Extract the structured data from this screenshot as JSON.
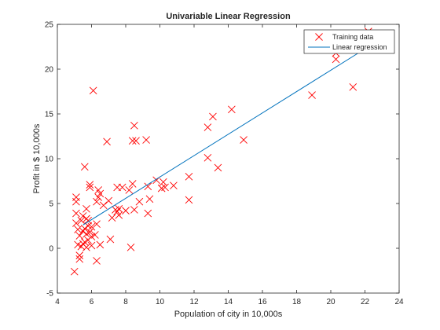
{
  "chart_data": {
    "type": "scatter",
    "title": "Univariable Linear Regression",
    "xlabel": "Population of city in 10,000s",
    "ylabel": "Profit in $ 10,000s",
    "xlim": [
      4,
      24
    ],
    "ylim": [
      -5,
      25
    ],
    "xticks": [
      "4",
      "6",
      "8",
      "10",
      "12",
      "14",
      "16",
      "18",
      "20",
      "22",
      "24"
    ],
    "yticks": [
      "-5",
      "0",
      "5",
      "10",
      "15",
      "20",
      "25"
    ],
    "grid": false,
    "legend_position": "top-right",
    "series": [
      {
        "name": "Training data",
        "kind": "marker-x",
        "color": "#ff0000",
        "points": [
          [
            5.0,
            -2.6
          ],
          [
            5.1,
            5.7
          ],
          [
            5.1,
            5.2
          ],
          [
            5.1,
            3.9
          ],
          [
            5.1,
            2.8
          ],
          [
            5.2,
            0.4
          ],
          [
            5.2,
            2.1
          ],
          [
            5.3,
            -0.8
          ],
          [
            5.3,
            -1.2
          ],
          [
            5.3,
            1.4
          ],
          [
            5.4,
            3.1
          ],
          [
            5.4,
            0.2
          ],
          [
            5.5,
            1.9
          ],
          [
            5.5,
            3.6
          ],
          [
            5.5,
            0.5
          ],
          [
            5.6,
            9.1
          ],
          [
            5.6,
            2.2
          ],
          [
            5.6,
            0.7
          ],
          [
            5.7,
            4.4
          ],
          [
            5.7,
            3.3
          ],
          [
            5.7,
            1.6
          ],
          [
            5.7,
            0.1
          ],
          [
            5.8,
            2.5
          ],
          [
            5.8,
            3.1
          ],
          [
            5.8,
            0.9
          ],
          [
            5.9,
            1.8
          ],
          [
            5.9,
            7.1
          ],
          [
            5.9,
            6.8
          ],
          [
            6.0,
            0.3
          ],
          [
            6.0,
            2.4
          ],
          [
            6.0,
            1.3
          ],
          [
            6.1,
            17.6
          ],
          [
            6.2,
            1.5
          ],
          [
            6.3,
            5.2
          ],
          [
            6.3,
            2.7
          ],
          [
            6.3,
            -1.4
          ],
          [
            6.4,
            6.5
          ],
          [
            6.4,
            5.7
          ],
          [
            6.5,
            0.4
          ],
          [
            6.5,
            6.1
          ],
          [
            6.7,
            4.8
          ],
          [
            6.9,
            11.9
          ],
          [
            7.0,
            5.3
          ],
          [
            7.1,
            1.0
          ],
          [
            7.2,
            3.4
          ],
          [
            7.4,
            4.3
          ],
          [
            7.5,
            4.1
          ],
          [
            7.5,
            6.8
          ],
          [
            7.6,
            3.7
          ],
          [
            7.6,
            4.4
          ],
          [
            7.8,
            6.8
          ],
          [
            8.0,
            4.2
          ],
          [
            8.2,
            6.5
          ],
          [
            8.3,
            0.1
          ],
          [
            8.4,
            12.0
          ],
          [
            8.4,
            7.2
          ],
          [
            8.5,
            13.7
          ],
          [
            8.5,
            4.3
          ],
          [
            8.6,
            12.0
          ],
          [
            8.8,
            5.2
          ],
          [
            9.2,
            12.1
          ],
          [
            9.3,
            3.9
          ],
          [
            9.3,
            6.9
          ],
          [
            9.4,
            5.5
          ],
          [
            9.8,
            7.6
          ],
          [
            10.1,
            6.7
          ],
          [
            10.2,
            7.4
          ],
          [
            10.3,
            6.8
          ],
          [
            10.8,
            7.0
          ],
          [
            11.7,
            8.0
          ],
          [
            11.7,
            5.4
          ],
          [
            12.8,
            13.5
          ],
          [
            12.8,
            10.1
          ],
          [
            13.1,
            14.7
          ],
          [
            13.4,
            9.0
          ],
          [
            14.2,
            15.5
          ],
          [
            14.9,
            12.1
          ],
          [
            18.9,
            17.1
          ],
          [
            20.3,
            21.8
          ],
          [
            20.3,
            21.1
          ],
          [
            21.3,
            18.0
          ],
          [
            22.2,
            24.2
          ]
        ]
      },
      {
        "name": "Linear regression",
        "kind": "line",
        "color": "#0072bd",
        "points": [
          [
            5.5,
            2.6
          ],
          [
            22.2,
            22.5
          ]
        ]
      }
    ]
  }
}
